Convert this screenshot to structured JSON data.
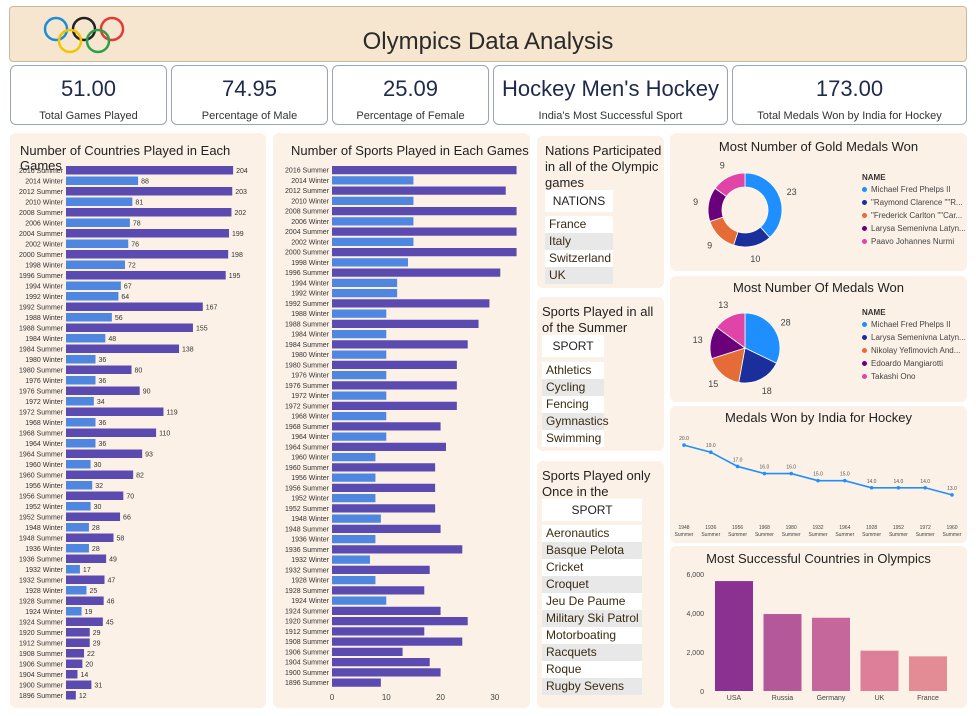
{
  "header": {
    "title": "Olympics Data Analysis"
  },
  "kpis": [
    {
      "value": "51.00",
      "label": "Total Games Played"
    },
    {
      "value": "74.95",
      "label": "Percentage of Male"
    },
    {
      "value": "25.09",
      "label": "Percentage of Female"
    },
    {
      "value": "Hockey Men's Hockey",
      "label": "India's Most Successful Sport"
    },
    {
      "value": "173.00",
      "label": "Total Medals Won by India for Hockey"
    }
  ],
  "tables": {
    "nations": {
      "title": "Nations Participated in all of the Olympic games",
      "header": "NATIONS",
      "rows": [
        "France",
        "Italy",
        "Switzerland",
        "UK"
      ]
    },
    "summer_sports": {
      "title": "Sports Played in all of the Summer games",
      "header": "SPORT",
      "rows": [
        "Athletics",
        "Cycling",
        "Fencing",
        "Gymnastics",
        "Swimming"
      ]
    },
    "once_sports": {
      "title": "Sports Played only Once in the Olympics",
      "header": "SPORT",
      "rows": [
        "Aeronautics",
        "Basque Pelota",
        "Cricket",
        "Croquet",
        "Jeu De Paume",
        "Military Ski Patrol",
        "Motorboating",
        "Racquets",
        "Roque",
        "Rugby Sevens"
      ]
    }
  },
  "chart_data": [
    {
      "type": "bar",
      "orientation": "horizontal",
      "title": "Number of Countries Played in Each Games",
      "categories": [
        "2016 Summer",
        "2014 Winter",
        "2012 Summer",
        "2010 Winter",
        "2008 Summer",
        "2006 Winter",
        "2004 Summer",
        "2002 Winter",
        "2000 Summer",
        "1998 Winter",
        "1996 Summer",
        "1994 Winter",
        "1992 Winter",
        "1992 Summer",
        "1988 Winter",
        "1988 Summer",
        "1984 Winter",
        "1984 Summer",
        "1980 Winter",
        "1980 Summer",
        "1976 Winter",
        "1976 Summer",
        "1972 Winter",
        "1972 Summer",
        "1968 Winter",
        "1968 Summer",
        "1964 Winter",
        "1964 Summer",
        "1960 Winter",
        "1960 Summer",
        "1956 Winter",
        "1956 Summer",
        "1952 Winter",
        "1952 Summer",
        "1948 Winter",
        "1948 Summer",
        "1936 Winter",
        "1936 Summer",
        "1932 Winter",
        "1932 Summer",
        "1928 Winter",
        "1928 Summer",
        "1924 Winter",
        "1924 Summer",
        "1920 Summer",
        "1912 Summer",
        "1908 Summer",
        "1906 Summer",
        "1904 Summer",
        "1900 Summer",
        "1896 Summer"
      ],
      "values": [
        204,
        88,
        203,
        81,
        202,
        78,
        199,
        76,
        198,
        72,
        195,
        67,
        64,
        167,
        56,
        155,
        48,
        138,
        36,
        80,
        36,
        90,
        34,
        119,
        36,
        110,
        36,
        93,
        30,
        82,
        32,
        70,
        30,
        66,
        28,
        58,
        28,
        49,
        17,
        47,
        25,
        46,
        19,
        45,
        29,
        29,
        22,
        20,
        14,
        31,
        12
      ],
      "xlim": [
        0,
        210
      ]
    },
    {
      "type": "bar",
      "orientation": "horizontal",
      "title": "Number of Sports Played in Each Games",
      "categories": [
        "2016 Summer",
        "2014 Winter",
        "2012 Summer",
        "2010 Winter",
        "2008 Summer",
        "2006 Winter",
        "2004 Summer",
        "2002 Winter",
        "2000 Summer",
        "1998 Winter",
        "1996 Summer",
        "1994 Winter",
        "1992 Winter",
        "1992 Summer",
        "1988 Winter",
        "1988 Summer",
        "1984 Winter",
        "1984 Summer",
        "1980 Winter",
        "1980 Summer",
        "1976 Winter",
        "1976 Summer",
        "1972 Winter",
        "1972 Summer",
        "1968 Winter",
        "1968 Summer",
        "1964 Winter",
        "1964 Summer",
        "1960 Winter",
        "1960 Summer",
        "1956 Winter",
        "1956 Summer",
        "1952 Winter",
        "1952 Summer",
        "1948 Winter",
        "1948 Summer",
        "1936 Winter",
        "1936 Summer",
        "1932 Winter",
        "1932 Summer",
        "1928 Winter",
        "1928 Summer",
        "1924 Winter",
        "1924 Summer",
        "1920 Summer",
        "1912 Summer",
        "1908 Summer",
        "1906 Summer",
        "1904 Summer",
        "1900 Summer",
        "1896 Summer"
      ],
      "values": [
        34,
        15,
        32,
        15,
        34,
        15,
        34,
        15,
        34,
        14,
        31,
        12,
        12,
        29,
        10,
        27,
        10,
        25,
        10,
        23,
        10,
        23,
        10,
        23,
        10,
        20,
        10,
        21,
        8,
        19,
        8,
        19,
        8,
        19,
        9,
        20,
        8,
        24,
        7,
        18,
        8,
        17,
        10,
        20,
        25,
        17,
        24,
        13,
        18,
        20,
        9
      ],
      "xticks": [
        0,
        10,
        20,
        30
      ],
      "xlim": [
        0,
        35
      ]
    },
    {
      "type": "pie",
      "donut": true,
      "title": "Most Number of Gold Medals Won",
      "legend_title": "NAME",
      "labels": [
        "Michael Fred Phelps II",
        "\"Raymond Clarence \"\"R...",
        "\"Frederick Carlton \"\"Car...",
        "Larysa Semenivna Latyn...",
        "Paavo Johannes Nurmi"
      ],
      "values": [
        23,
        10,
        9,
        9,
        9
      ],
      "colors": [
        "#1f8fff",
        "#1a2e9c",
        "#e66c37",
        "#6b007b",
        "#e044a7"
      ],
      "legend_position": "right"
    },
    {
      "type": "pie",
      "title": "Most Number Of Medals Won",
      "legend_title": "NAME",
      "labels": [
        "Michael Fred Phelps II",
        "Larysa Semenivna Latyn...",
        "Nikolay Yefimovich And...",
        "Edoardo Mangiarotti",
        "Takashi Ono"
      ],
      "values": [
        28,
        18,
        15,
        13,
        13
      ],
      "colors": [
        "#1f8fff",
        "#1a2e9c",
        "#e66c37",
        "#6b007b",
        "#e044a7"
      ],
      "legend_position": "right"
    },
    {
      "type": "line",
      "title": "Medals Won by India for Hockey",
      "categories": [
        "1948 Summer",
        "1936 Summer",
        "1956 Summer",
        "1968 Summer",
        "1980 Summer",
        "1932 Summer",
        "1964 Summer",
        "1928 Summer",
        "1952 Summer",
        "1972 Summer",
        "1960 Summer"
      ],
      "values": [
        20.0,
        19.0,
        17.0,
        16.0,
        16.0,
        15.0,
        15.0,
        14.0,
        14.0,
        14.0,
        13.0
      ],
      "color": "#1f8fff"
    },
    {
      "type": "bar",
      "title": "Most Successful Countries in Olympics",
      "categories": [
        "USA",
        "Russia",
        "Germany",
        "UK",
        "France"
      ],
      "values": [
        5637,
        3947,
        3756,
        2068,
        1777
      ],
      "colors": [
        "#8b3191",
        "#b5589a",
        "#c6679c",
        "#dd7f98",
        "#e48c95"
      ],
      "yticks": [
        "0",
        "2,000",
        "4,000",
        "6,000"
      ],
      "ylim": [
        0,
        6000
      ]
    }
  ]
}
